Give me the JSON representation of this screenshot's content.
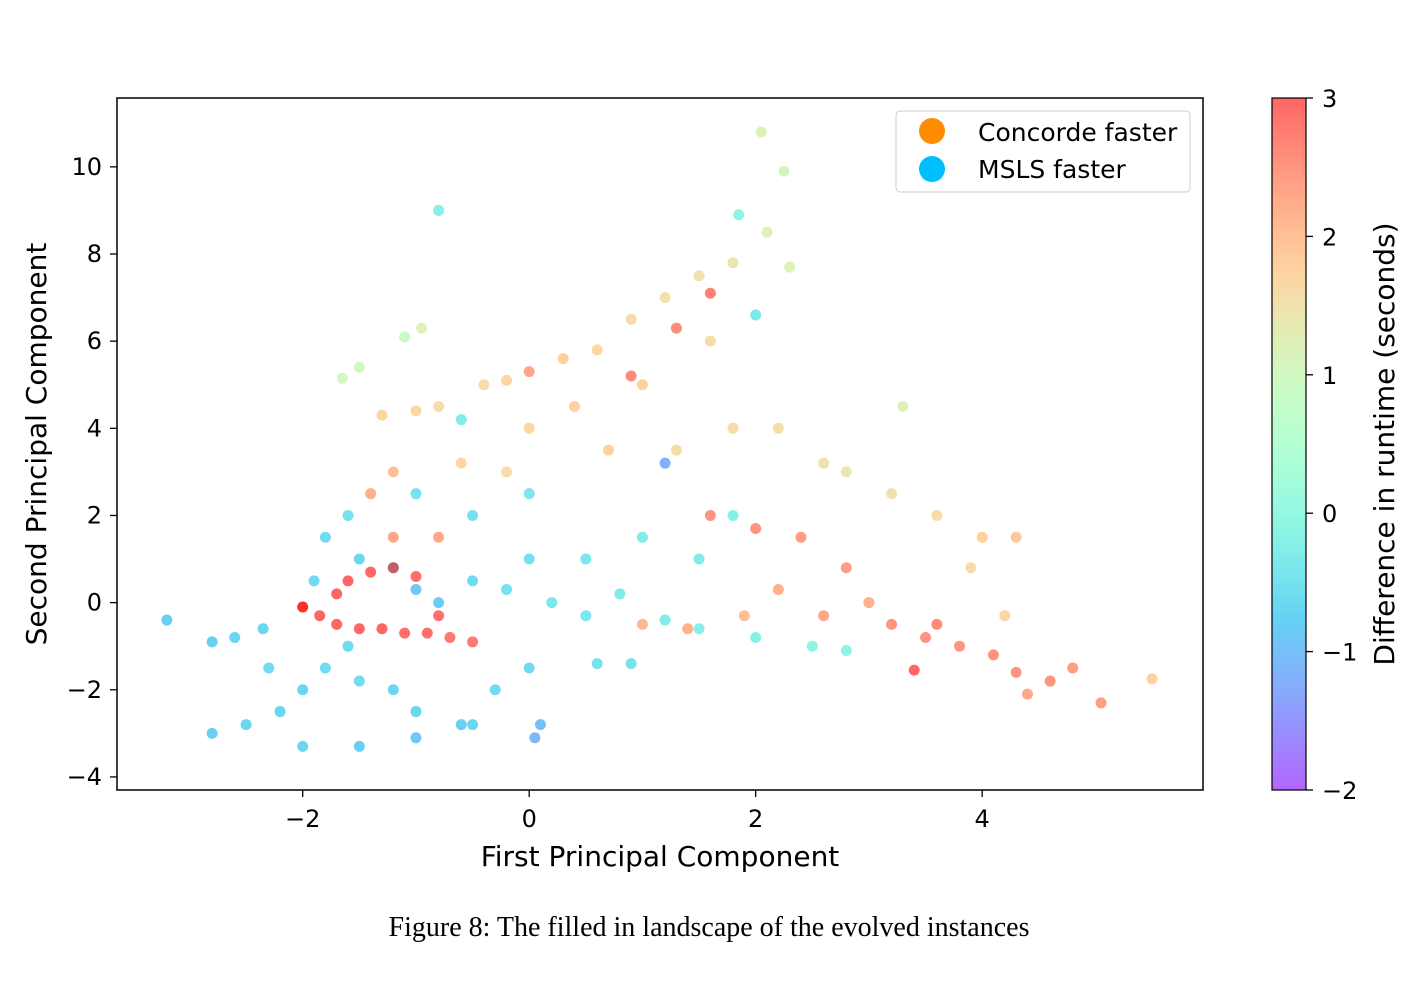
{
  "chart_data": {
    "type": "scatter",
    "xlabel": "First Principal Component",
    "ylabel": "Second Principal Component",
    "xlim": [
      -3.64,
      5.95
    ],
    "ylim": [
      -4.3,
      11.58
    ],
    "xticks": [
      -2,
      0,
      2,
      4
    ],
    "yticks": [
      -4,
      -2,
      0,
      2,
      4,
      6,
      8,
      10
    ],
    "grid": false,
    "legend": {
      "placement": "top-right",
      "entries": [
        {
          "label": "Concorde faster",
          "color": "#ff8c00"
        },
        {
          "label": "MSLS faster",
          "color": "#00bfff"
        }
      ]
    },
    "colorbar": {
      "label": "Difference in runtime (seconds)",
      "colormap": "rainbow",
      "range": [
        -2,
        3
      ],
      "ticks": [
        -2,
        -1,
        0,
        1,
        2,
        3
      ]
    },
    "point_fields": [
      "x",
      "y",
      "runtime_difference"
    ],
    "points": [
      [
        -1.8,
        1.5,
        -0.6
      ],
      [
        -1.6,
        2,
        -0.5
      ],
      [
        -1.9,
        0.5,
        -0.6
      ],
      [
        -1.5,
        1,
        -0.7
      ],
      [
        -1.2,
        0.8,
        -0.8
      ],
      [
        -1.0,
        0.3,
        -0.9
      ],
      [
        -0.8,
        0,
        -0.8
      ],
      [
        -0.5,
        0.5,
        -0.6
      ],
      [
        -0.2,
        0.3,
        -0.5
      ],
      [
        0.2,
        0,
        -0.4
      ],
      [
        0.5,
        -0.3,
        -0.4
      ],
      [
        0.8,
        0.2,
        -0.3
      ],
      [
        1.2,
        -0.4,
        -0.3
      ],
      [
        1.5,
        -0.6,
        -0.2
      ],
      [
        2,
        -0.8,
        -0.2
      ],
      [
        2.5,
        -1,
        -0.1
      ],
      [
        2.8,
        -1.1,
        -0.1
      ],
      [
        0,
        1,
        -0.5
      ],
      [
        0.5,
        1,
        -0.4
      ],
      [
        1,
        1.5,
        -0.3
      ],
      [
        1.5,
        1,
        -0.3
      ],
      [
        1.8,
        2,
        -0.2
      ],
      [
        -1,
        2.5,
        -0.5
      ],
      [
        -0.5,
        2,
        -0.5
      ],
      [
        0,
        2.5,
        -0.4
      ],
      [
        -0.6,
        4.2,
        -0.3
      ],
      [
        -2.8,
        -3,
        -0.8
      ],
      [
        -2.5,
        -2.8,
        -0.7
      ],
      [
        -2.2,
        -2.5,
        -0.7
      ],
      [
        -2,
        -2,
        -0.7
      ],
      [
        -1.8,
        -1.5,
        -0.6
      ],
      [
        -1.5,
        -1.8,
        -0.6
      ],
      [
        -1.2,
        -2,
        -0.7
      ],
      [
        -1,
        -2.5,
        -0.7
      ],
      [
        -0.6,
        -2.8,
        -0.8
      ],
      [
        -2,
        -3.3,
        -0.7
      ],
      [
        -1.5,
        -3.3,
        -0.8
      ],
      [
        -1,
        -3.1,
        -0.9
      ],
      [
        -0.5,
        -2.8,
        -0.7
      ],
      [
        -0.3,
        -2,
        -0.6
      ],
      [
        0,
        -1.5,
        -0.6
      ],
      [
        0.1,
        -2.8,
        -1.0
      ],
      [
        0.05,
        -3.1,
        -1.1
      ],
      [
        -1.6,
        -1,
        -0.6
      ],
      [
        -2.3,
        -1.5,
        -0.6
      ],
      [
        -3.2,
        -0.4,
        -0.8
      ],
      [
        -2.8,
        -0.9,
        -0.8
      ],
      [
        -2.6,
        -0.8,
        -0.7
      ],
      [
        -2.35,
        -0.6,
        -0.7
      ],
      [
        0.6,
        -1.4,
        -0.5
      ],
      [
        0.9,
        -1.4,
        -0.5
      ],
      [
        -1.85,
        -0.3,
        3
      ],
      [
        -1.7,
        -0.5,
        3
      ],
      [
        -1.5,
        -0.6,
        3
      ],
      [
        -1.3,
        -0.6,
        3
      ],
      [
        -1.1,
        -0.7,
        2.9
      ],
      [
        -0.9,
        -0.7,
        2.9
      ],
      [
        -0.7,
        -0.8,
        2.8
      ],
      [
        -0.5,
        -0.9,
        2.8
      ],
      [
        -1.6,
        0.5,
        3
      ],
      [
        -1.4,
        0.7,
        3
      ],
      [
        -1.2,
        0.8,
        2.9
      ],
      [
        -1,
        0.6,
        2.9
      ],
      [
        -1.7,
        0.2,
        3
      ],
      [
        -0.8,
        -0.3,
        2.9
      ],
      [
        -2.0,
        -0.1,
        2.8
      ],
      [
        -1.2,
        1.5,
        2.3
      ],
      [
        -0.8,
        1.5,
        2.3
      ],
      [
        -1.4,
        2.5,
        2.2
      ],
      [
        -1.2,
        3.0,
        2.0
      ],
      [
        1.6,
        2,
        2.5
      ],
      [
        2,
        1.7,
        2.5
      ],
      [
        2.4,
        1.5,
        2.4
      ],
      [
        2.8,
        0.8,
        2.4
      ],
      [
        3.2,
        -0.5,
        2.5
      ],
      [
        3.5,
        -0.8,
        2.5
      ],
      [
        3.8,
        -1,
        2.5
      ],
      [
        4.1,
        -1.2,
        2.5
      ],
      [
        4.3,
        -1.6,
        2.5
      ],
      [
        4.6,
        -1.8,
        2.5
      ],
      [
        4.8,
        -1.5,
        2.4
      ],
      [
        5.05,
        -2.3,
        2.4
      ],
      [
        3.6,
        -0.5,
        2.6
      ],
      [
        4.4,
        -2.1,
        2.3
      ],
      [
        3,
        0,
        2.2
      ],
      [
        2.6,
        -0.3,
        2.3
      ],
      [
        2.2,
        0.3,
        2.2
      ],
      [
        1.4,
        -0.6,
        2.2
      ],
      [
        1,
        -0.5,
        2.1
      ],
      [
        1.9,
        -0.3,
        2.0
      ],
      [
        -1.3,
        4.3,
        1.7
      ],
      [
        -1,
        4.4,
        1.7
      ],
      [
        -0.8,
        4.5,
        1.6
      ],
      [
        -0.4,
        5.0,
        1.6
      ],
      [
        -0.2,
        5.1,
        1.7
      ],
      [
        0,
        5.3,
        2.3
      ],
      [
        0.3,
        5.6,
        1.8
      ],
      [
        0.6,
        5.8,
        1.7
      ],
      [
        0.9,
        6.5,
        1.6
      ],
      [
        1.2,
        7,
        1.5
      ],
      [
        1.5,
        7.5,
        1.5
      ],
      [
        1.8,
        7.8,
        1.4
      ],
      [
        2.3,
        7.7,
        1.2
      ],
      [
        1.6,
        6,
        1.6
      ],
      [
        1,
        5,
        1.8
      ],
      [
        0.4,
        4.5,
        1.8
      ],
      [
        0,
        4,
        1.7
      ],
      [
        0.7,
        3.5,
        1.8
      ],
      [
        1.3,
        3.5,
        1.6
      ],
      [
        1.8,
        4,
        1.6
      ],
      [
        2.2,
        4,
        1.6
      ],
      [
        2.8,
        3,
        1.4
      ],
      [
        3.2,
        2.5,
        1.5
      ],
      [
        3.6,
        2,
        1.6
      ],
      [
        4,
        1.5,
        1.8
      ],
      [
        4.3,
        1.5,
        1.9
      ],
      [
        3.3,
        4.5,
        1.2
      ],
      [
        2.6,
        3.2,
        1.5
      ],
      [
        1.3,
        6.3,
        2.6
      ],
      [
        1.6,
        7.1,
        2.7
      ],
      [
        0.9,
        5.2,
        2.6
      ],
      [
        -0.2,
        3,
        1.6
      ],
      [
        -0.6,
        3.2,
        1.7
      ],
      [
        5.5,
        -1.75,
        1.8
      ],
      [
        4.2,
        -0.3,
        1.7
      ],
      [
        3.9,
        0.8,
        1.6
      ],
      [
        -0.8,
        9,
        -0.2
      ],
      [
        1.85,
        8.9,
        -0.1
      ],
      [
        2.05,
        10.8,
        1.2
      ],
      [
        2.25,
        9.9,
        1.1
      ],
      [
        2.1,
        8.5,
        1.2
      ],
      [
        -1.65,
        5.15,
        1.0
      ],
      [
        -1.5,
        5.4,
        1.0
      ],
      [
        -0.95,
        6.3,
        1.2
      ],
      [
        -1.1,
        6.1,
        0.8
      ],
      [
        1.2,
        3.2,
        -1.2
      ],
      [
        2,
        6.6,
        -0.4
      ],
      [
        3.4,
        -1.55,
        3
      ],
      [
        -2.0,
        -0.1,
        3
      ]
    ]
  },
  "caption": "Figure 8: The filled in landscape of the evolved instances"
}
